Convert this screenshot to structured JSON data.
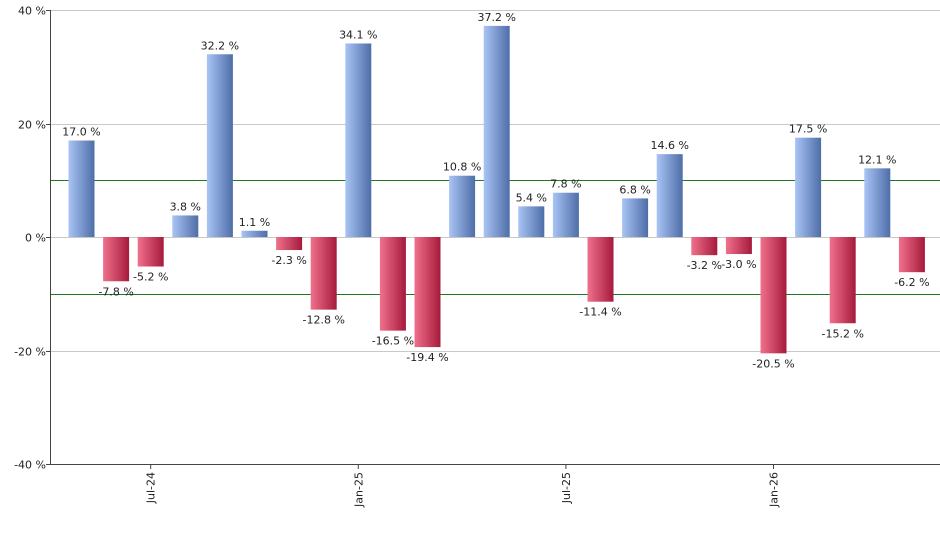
{
  "chart_data": {
    "type": "bar",
    "title": "",
    "xlabel": "",
    "ylabel": "",
    "ylim": [
      -40,
      40
    ],
    "y_ticks": [
      {
        "value": 40,
        "label": "40 %"
      },
      {
        "value": 20,
        "label": "20 %"
      },
      {
        "value": 0,
        "label": "0 %"
      },
      {
        "value": -20,
        "label": "-20 %"
      },
      {
        "value": -40,
        "label": "-40 %"
      }
    ],
    "reference_lines": [
      10,
      -10
    ],
    "x_ticks": [
      {
        "index": 2,
        "label": "Jul-24"
      },
      {
        "index": 8,
        "label": "Jan-25"
      },
      {
        "index": 14,
        "label": "Jul-25"
      },
      {
        "index": 20,
        "label": "Jan-26"
      }
    ],
    "values": [
      17.0,
      -7.8,
      -5.2,
      3.8,
      32.2,
      1.1,
      -2.3,
      -12.8,
      34.1,
      -16.5,
      -19.4,
      10.8,
      37.2,
      5.4,
      7.8,
      -11.4,
      6.8,
      14.6,
      -3.2,
      -3.0,
      -20.5,
      17.5,
      -15.2,
      12.1,
      -6.2
    ],
    "data_labels": [
      "17.0 %",
      "-7.8 %",
      "-5.2 %",
      "3.8 %",
      "32.2 %",
      "1.1 %",
      "-2.3 %",
      "-12.8 %",
      "34.1 %",
      "-16.5 %",
      "-19.4 %",
      "10.8 %",
      "37.2 %",
      "5.4 %",
      "7.8 %",
      "-11.4 %",
      "6.8 %",
      "14.6 %",
      "-3.2 %",
      "-3.0 %",
      "-20.5 %",
      "17.5 %",
      "-15.2 %",
      "12.1 %",
      "-6.2 %"
    ],
    "grid": true,
    "colors": {
      "positive_light": "#a9c4f5",
      "positive_dark": "#4e6ea8",
      "negative_light": "#f0718c",
      "negative_dark": "#a61a3c",
      "reference_line": "#1e7a1e",
      "grid": "#c8c8c8",
      "axis": "#444444"
    }
  }
}
